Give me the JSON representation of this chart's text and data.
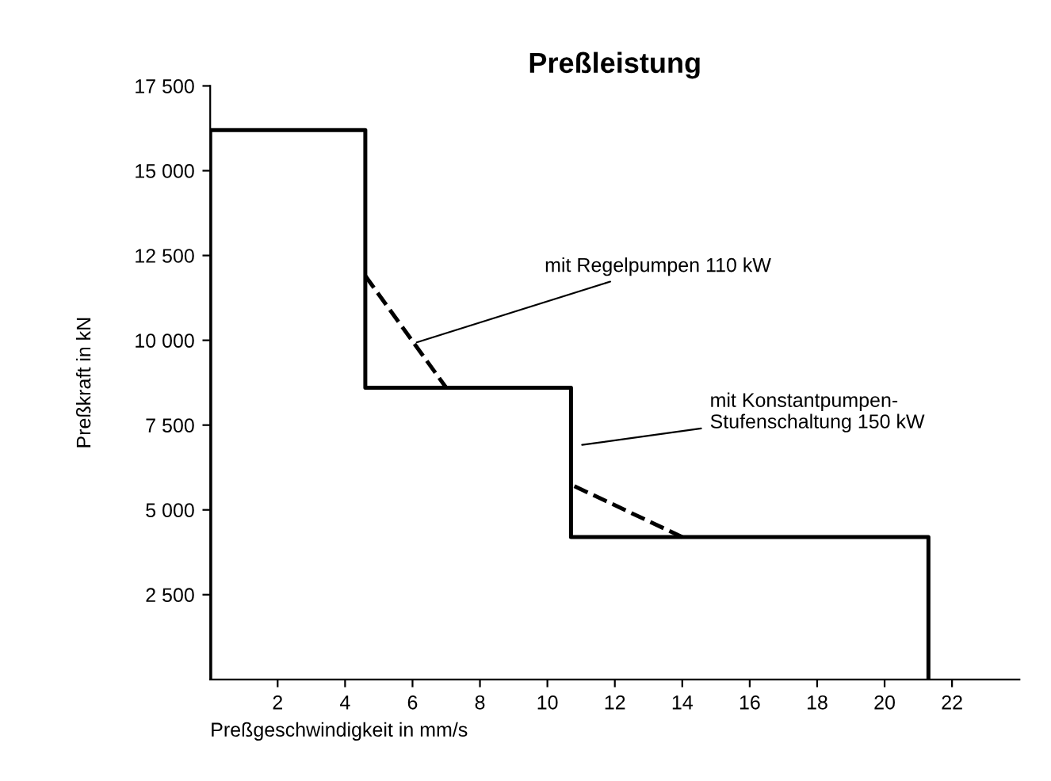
{
  "chart_data": {
    "type": "step",
    "title": "Preßleistung",
    "xlabel": "Preßgeschwindigkeit in mm/s",
    "ylabel": "Preßkraft in kN",
    "xlim": [
      0,
      24
    ],
    "xticks": [
      2,
      4,
      6,
      8,
      10,
      12,
      14,
      16,
      18,
      20,
      22
    ],
    "ylim": [
      0,
      17500
    ],
    "yticks": [
      {
        "value": 2500,
        "label": "2 500"
      },
      {
        "value": 5000,
        "label": "5 000"
      },
      {
        "value": 7500,
        "label": "7 500"
      },
      {
        "value": 10000,
        "label": "10 000"
      },
      {
        "value": 12500,
        "label": "12 500"
      },
      {
        "value": 15000,
        "label": "15 000"
      },
      {
        "value": 17500,
        "label": "17 500"
      }
    ],
    "series": [
      {
        "color": "#000000",
        "line_style": "solid",
        "x": [
          0,
          0,
          4.6,
          10.7,
          21.3
        ],
        "values": [
          0,
          16200,
          8600,
          4200,
          0
        ]
      },
      {
        "type": "line",
        "color": "#000000",
        "line_style": "dashed",
        "x": [
          4.6,
          7.0
        ],
        "values": [
          11900,
          8600
        ]
      },
      {
        "type": "line",
        "color": "#000000",
        "line_style": "dashed",
        "x": [
          10.8,
          14.0
        ],
        "values": [
          5700,
          4200
        ]
      }
    ],
    "annotations": [
      {
        "text": "mit Regelpumpen 110 kW",
        "x": 6.0,
        "y": 9900
      },
      {
        "text": "mit Konstantpumpen-\nStufenschaltung 150 kW",
        "x": 10.9,
        "y": 6900
      }
    ],
    "grid": false,
    "legend": false,
    "marker": "none"
  }
}
